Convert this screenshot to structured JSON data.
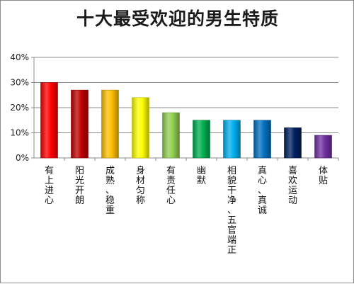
{
  "chart_data": {
    "type": "bar",
    "title": "十大最受欢迎的男生特质",
    "xlabel": "",
    "ylabel": "",
    "ylim": [
      0,
      40
    ],
    "yticks": [
      "0%",
      "10%",
      "20%",
      "30%",
      "40%"
    ],
    "grid": true,
    "legend": "none",
    "categories": [
      "有上进心",
      "阳光开朗",
      "成熟、稳重",
      "身材匀称",
      "有责任心",
      "幽默",
      "相貌干净、五官端正",
      "真心、真诚",
      "喜欢运动",
      "体贴"
    ],
    "values": [
      30,
      27,
      27,
      24,
      18,
      15,
      15,
      15,
      12,
      9
    ],
    "colors": [
      "#ff0000",
      "#c00000",
      "#ffc000",
      "#ffff00",
      "#92d050",
      "#00b050",
      "#00b0f0",
      "#0070c0",
      "#002060",
      "#7030a0"
    ]
  }
}
